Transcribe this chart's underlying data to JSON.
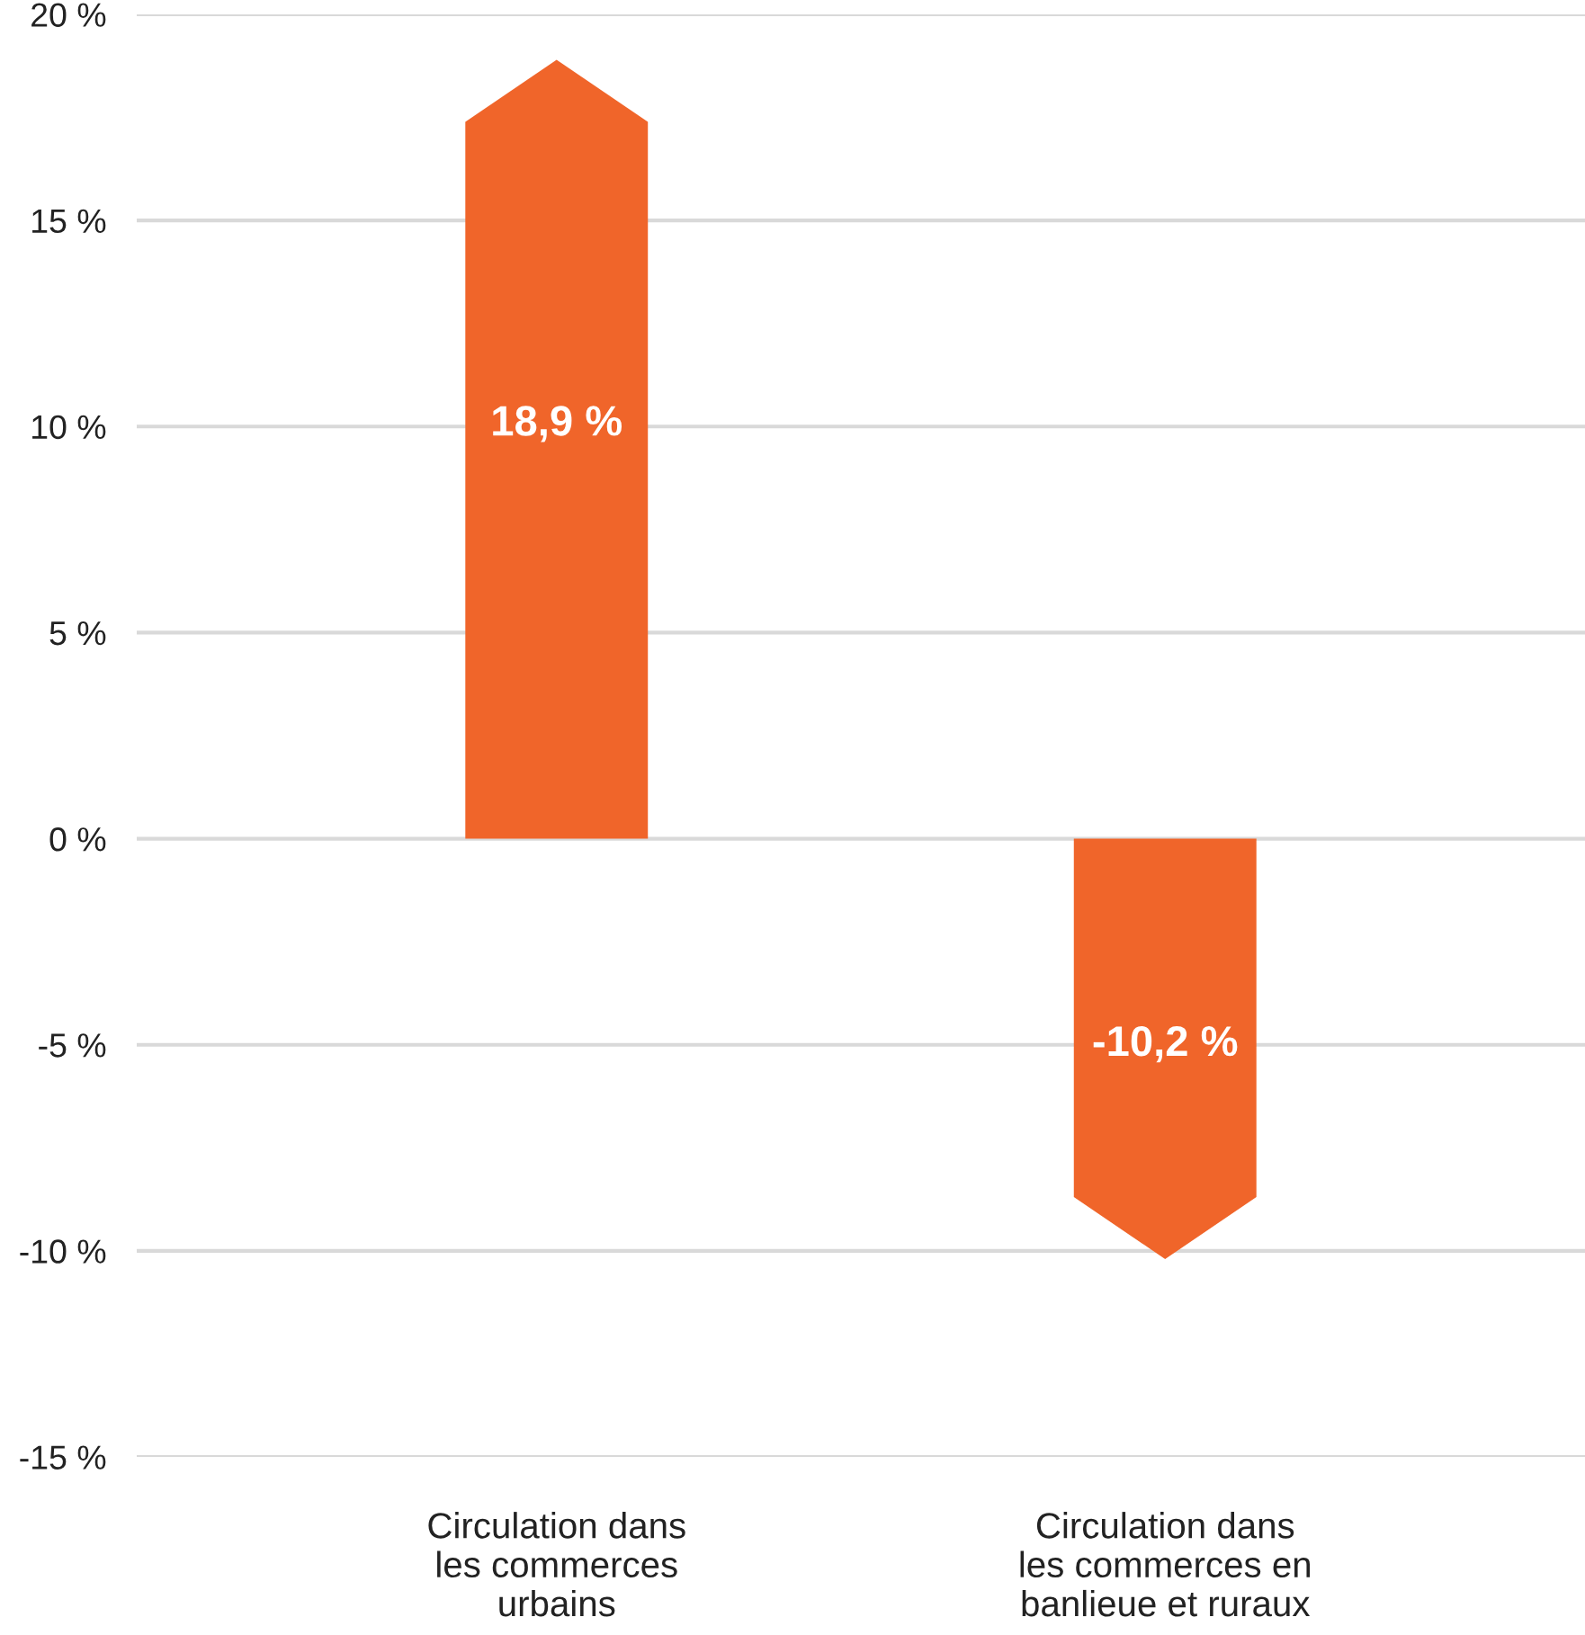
{
  "chart_data": {
    "type": "bar",
    "categories": [
      "Circulation dans\nles commerces\nurbains",
      "Circulation dans\nles commerces en\nbanlieue et ruraux"
    ],
    "values": [
      18.9,
      -10.2
    ],
    "value_labels": [
      "18,9 %",
      "-10,2 %"
    ],
    "color": "#f0652a",
    "ylim": [
      -15,
      20
    ],
    "yticks": [
      {
        "value": -15,
        "label": "-15 %"
      },
      {
        "value": -10,
        "label": "-10 %"
      },
      {
        "value": -5,
        "label": "-5 %"
      },
      {
        "value": 0,
        "label": "0 %"
      },
      {
        "value": 5,
        "label": "5 %"
      },
      {
        "value": 10,
        "label": "10 %"
      },
      {
        "value": 15,
        "label": "15 %"
      },
      {
        "value": 20,
        "label": "20 %"
      }
    ],
    "grid": "y"
  }
}
